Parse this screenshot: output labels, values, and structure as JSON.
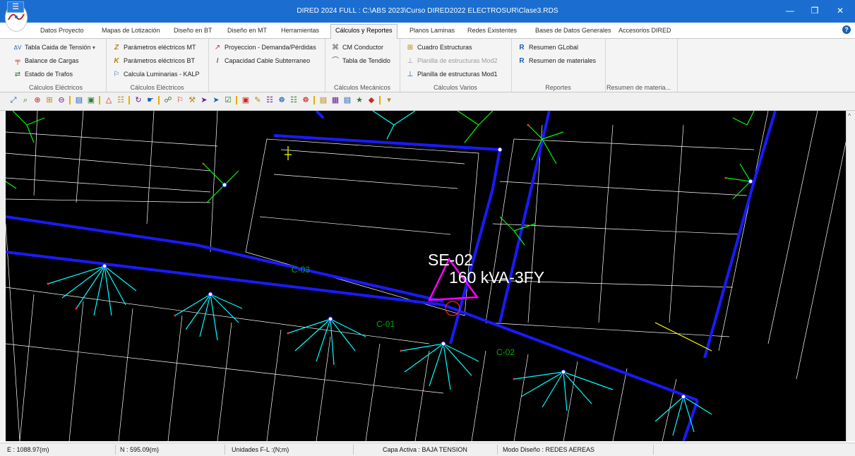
{
  "window": {
    "title": "DIRED 2024 FULL : C:\\ABS 2023\\Curso DIRED2022 ELECTROSUR\\Clase3.RDS",
    "quick_access": "☰",
    "close_small": "✕",
    "min": "—",
    "restore": "❒",
    "close": "✕"
  },
  "menu_tabs": [
    "Datos Proyecto",
    "Mapas de Lotización",
    "Diseño en BT",
    "Diseño en MT",
    "Herramientas",
    "Cálculos y Reportes",
    "Planos Laminas",
    "Redes Existentes",
    "Bases de Datos Generales",
    "Accesorios DIRED"
  ],
  "active_tab": "Cálculos y Reportes",
  "help_icon": "?",
  "ribbon": {
    "groups": [
      {
        "label": "Cálculos Eléctricos",
        "items": [
          {
            "label": "Tabla Caida de Tensión",
            "icon": "ΔV",
            "dropdown": "▾"
          },
          {
            "label": "Balance de Cargas",
            "icon": "╤"
          },
          {
            "label": "Estado de Trafos",
            "icon": "⇄"
          }
        ]
      },
      {
        "label": "Cálculos Eléctricos",
        "items": [
          {
            "label": "Parámetros eléctricos  MT",
            "icon": "Z"
          },
          {
            "label": "Parámetros eléctricos  BT",
            "icon": "K"
          },
          {
            "label": "Calcula Luminarias - KALP",
            "icon": "⚐"
          }
        ]
      },
      {
        "label": "",
        "items": [
          {
            "label": "Proyeccion - Demanda/Pérdidas",
            "icon": "↗"
          },
          {
            "label": "Capacidad Cable Subterraneo",
            "icon": "I"
          }
        ]
      },
      {
        "label": "Cálculos Mecánicos",
        "items": [
          {
            "label": "CM Conductor",
            "icon": "⌘"
          },
          {
            "label": "Tabla de Tendido",
            "icon": "⌒"
          }
        ]
      },
      {
        "label": "Cálculos Varios",
        "items": [
          {
            "label": "Cuadro Estructuras",
            "icon": "⊞"
          },
          {
            "label": "Planilla de estructuras Mod2",
            "icon": "⊥",
            "disabled": true
          },
          {
            "label": "Planilla de estructuras Mod1",
            "icon": "⊥"
          }
        ]
      },
      {
        "label": "Reportes",
        "items": [
          {
            "label": "Resumen GLobal",
            "icon": "R"
          },
          {
            "label": "Resumen de materiales",
            "icon": "R"
          }
        ]
      },
      {
        "label": "Resumen de materia...",
        "items": []
      }
    ]
  },
  "toolbar_icons": [
    {
      "name": "zoom-window-icon",
      "glyph": "⤢"
    },
    {
      "name": "zoom-realtime-icon",
      "glyph": "⌕"
    },
    {
      "name": "zoom-in-icon",
      "glyph": "⊕"
    },
    {
      "name": "zoom-extents-icon",
      "glyph": "⊞"
    },
    {
      "name": "zoom-previous-icon",
      "glyph": "⊖"
    },
    {
      "name": "open-folder-icon",
      "glyph": "▤"
    },
    {
      "name": "save-icon",
      "glyph": "▣"
    },
    {
      "name": "layers-icon",
      "glyph": "△"
    },
    {
      "name": "properties-icon",
      "glyph": "☷"
    },
    {
      "name": "refresh-icon",
      "glyph": "↻"
    },
    {
      "name": "pan-icon",
      "glyph": "☛"
    },
    {
      "name": "network-icon",
      "glyph": "☍"
    },
    {
      "name": "tool-a-icon",
      "glyph": "⚐"
    },
    {
      "name": "tool-b-icon",
      "glyph": "⚒"
    },
    {
      "name": "tool-c-icon",
      "glyph": "➤"
    },
    {
      "name": "tool-d-icon",
      "glyph": "➤"
    },
    {
      "name": "tool-e-icon",
      "glyph": "☑"
    },
    {
      "name": "tool-f-icon",
      "glyph": "▣"
    },
    {
      "name": "tool-g-icon",
      "glyph": "✎"
    },
    {
      "name": "tool-h-icon",
      "glyph": "☷"
    },
    {
      "name": "tool-i-icon",
      "glyph": "☸"
    },
    {
      "name": "tool-j-icon",
      "glyph": "☷"
    },
    {
      "name": "tool-k-icon",
      "glyph": "☸"
    },
    {
      "name": "tool-l-icon",
      "glyph": "▤"
    },
    {
      "name": "tool-m-icon",
      "glyph": "▦"
    },
    {
      "name": "tool-n-icon",
      "glyph": "▤"
    },
    {
      "name": "tool-o-icon",
      "glyph": "★"
    },
    {
      "name": "tool-p-icon",
      "glyph": "◆"
    },
    {
      "name": "customize-icon",
      "glyph": "▾"
    }
  ],
  "drawing": {
    "substation_name": "SE-02",
    "substation_capacity": "160 kVA-3FY",
    "circuit_labels": [
      "C-01",
      "C-02",
      "C-03"
    ],
    "colors": {
      "background": "#000000",
      "lot_lines": "#ffffff",
      "conductor": "#1a1aff",
      "service": "#00ffff",
      "street_light": "#00ff00",
      "substation": "#ff00ff",
      "text": "#ffffff"
    }
  },
  "status": {
    "e": "E : 1088.97(m)",
    "n": "N : 595.09(m)",
    "units": "Unidades F-L :(N;m)",
    "layer": "Capa Activa : BAJA TENSION",
    "mode": "Modo Diseño : REDES AEREAS"
  }
}
